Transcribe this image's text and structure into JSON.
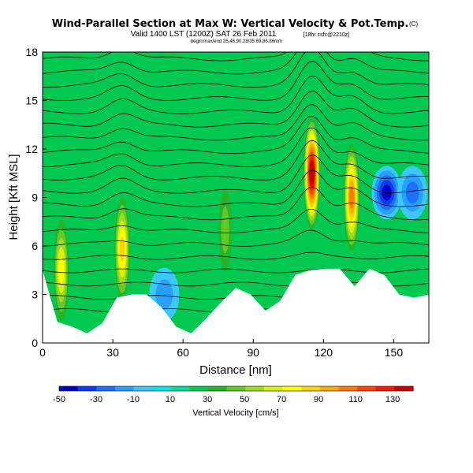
{
  "chart_data": {
    "type": "heatmap",
    "title": "Wind-Parallel Section at Max W: Vertical Velocity & Pot.Temp.",
    "title_mark": "(C)",
    "subtitle": "Valid 1400 LST (1200Z) SAT 26 Feb 2011",
    "subtitle_extra": "[18hr csfc@2210z]",
    "subtitle2": "begin/max/end 35.46,90.28/35.69,86.86mm",
    "xlabel": "Distance [nm]",
    "ylabel": "Height [Kft MSL]",
    "xlim": [
      0,
      165
    ],
    "ylim": [
      0,
      18
    ],
    "x_ticks": [
      "0",
      "30",
      "60",
      "90",
      "120",
      "150"
    ],
    "y_ticks": [
      "0",
      "3",
      "6",
      "9",
      "12",
      "15",
      "18"
    ],
    "colorbar": {
      "label": "Vertical Velocity [cm/s]",
      "ticks": [
        "-50",
        "-30",
        "-10",
        "10",
        "30",
        "50",
        "70",
        "90",
        "110",
        "130"
      ],
      "colors": [
        "#0000c8",
        "#0a3cf0",
        "#1e6eff",
        "#28a0ff",
        "#3cc8ff",
        "#00e6e6",
        "#00dca0",
        "#00c850",
        "#28b428",
        "#64c828",
        "#a0dc1e",
        "#dcf00a",
        "#ffff00",
        "#ffd200",
        "#ffaa00",
        "#ff7800",
        "#ff4600",
        "#f01e00",
        "#c80000"
      ]
    },
    "terrain_max_kft": [
      4.5,
      1.3,
      1.0,
      0.6,
      1.2,
      2.8,
      3.0,
      3.0,
      2.2,
      1.0,
      0.6,
      1.5,
      2.5,
      3.4,
      3.0,
      2.0,
      2.6,
      4.2,
      4.5,
      4.6,
      4.6,
      3.5,
      4.6,
      4.2,
      3.0,
      2.8,
      3.0
    ],
    "updraft_cores": [
      {
        "x_nm": 115,
        "z_kft": 10.5,
        "w_cms": 130
      },
      {
        "x_nm": 132,
        "z_kft": 9.0,
        "w_cms": 90
      },
      {
        "x_nm": 34,
        "z_kft": 5.8,
        "w_cms": 70
      },
      {
        "x_nm": 8,
        "z_kft": 4.5,
        "w_cms": 60
      },
      {
        "x_nm": 78,
        "z_kft": 7.0,
        "w_cms": 30
      }
    ],
    "downdraft_cores": [
      {
        "x_nm": 147,
        "z_kft": 9.3,
        "w_cms": -50
      },
      {
        "x_nm": 158,
        "z_kft": 9.3,
        "w_cms": -30
      },
      {
        "x_nm": 52,
        "z_kft": 3.0,
        "w_cms": -20
      }
    ],
    "theta_levels_k": [
      296,
      298,
      300,
      302,
      304,
      306,
      308,
      310,
      312,
      314,
      316,
      318,
      320,
      322,
      324,
      326,
      328,
      330,
      332,
      334
    ]
  }
}
